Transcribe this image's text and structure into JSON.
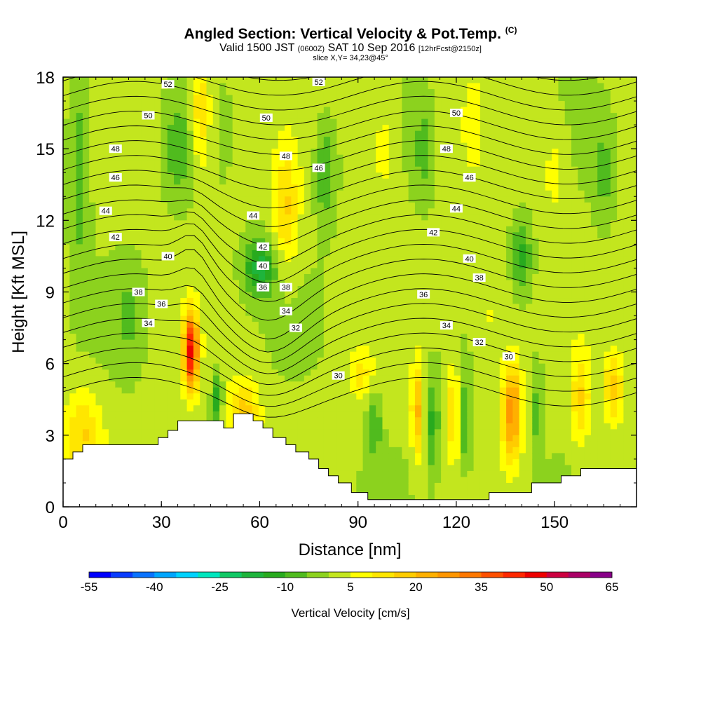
{
  "header": {
    "title": "Angled Section: Vertical Velocity & Pot.Temp.",
    "title_suffix": "(C)",
    "valid_prefix": "Valid 1500 JST",
    "valid_utc": "(0600Z)",
    "valid_date": "SAT 10 Sep 2016",
    "forecast": "[12hrFcst@2150z]",
    "slice": "slice X,Y= 34,23@45°"
  },
  "chart_data": {
    "type": "heatmap",
    "title": "Angled Section: Vertical Velocity & Pot.Temp.",
    "xlabel": "Distance [nm]",
    "ylabel": "Height [Kft MSL]",
    "xlim": [
      0,
      175
    ],
    "ylim": [
      0,
      18
    ],
    "x_ticks": [
      0,
      30,
      60,
      90,
      120,
      150
    ],
    "y_ticks": [
      0,
      3,
      6,
      9,
      12,
      15,
      18
    ],
    "colorbar": {
      "label": "Vertical Velocity [cm/s]",
      "tick_labels": [
        -55,
        -40,
        -25,
        -10,
        5,
        20,
        35,
        50,
        65
      ],
      "levels": [
        -55,
        -50,
        -45,
        -40,
        -35,
        -30,
        -25,
        -20,
        -15,
        -10,
        -5,
        0,
        5,
        10,
        15,
        20,
        25,
        30,
        35,
        40,
        45,
        50,
        55,
        60,
        65
      ],
      "colors": [
        "#0000ff",
        "#0a3cff",
        "#0a73ff",
        "#00a5ff",
        "#00d2ff",
        "#00e6be",
        "#10c864",
        "#1eb43c",
        "#28aa1e",
        "#50bb1e",
        "#8cd21e",
        "#c3e61e",
        "#ffff00",
        "#ffe600",
        "#ffcc00",
        "#ffb000",
        "#ff9600",
        "#ff7800",
        "#ff5000",
        "#ff2800",
        "#ee0000",
        "#cc0040",
        "#aa0066",
        "#880088"
      ]
    },
    "theta_contour_labels": [
      {
        "value": "52",
        "x": 32,
        "y": 17.7
      },
      {
        "value": "52",
        "x": 78,
        "y": 17.8
      },
      {
        "value": "50",
        "x": 26,
        "y": 16.4
      },
      {
        "value": "50",
        "x": 62,
        "y": 16.3
      },
      {
        "value": "50",
        "x": 120,
        "y": 16.5
      },
      {
        "value": "48",
        "x": 16,
        "y": 15.0
      },
      {
        "value": "48",
        "x": 68,
        "y": 14.7
      },
      {
        "value": "48",
        "x": 117,
        "y": 15.0
      },
      {
        "value": "46",
        "x": 16,
        "y": 13.8
      },
      {
        "value": "46",
        "x": 78,
        "y": 14.2
      },
      {
        "value": "46",
        "x": 124,
        "y": 13.8
      },
      {
        "value": "44",
        "x": 13,
        "y": 12.4
      },
      {
        "value": "44",
        "x": 58,
        "y": 12.2
      },
      {
        "value": "44",
        "x": 120,
        "y": 12.5
      },
      {
        "value": "42",
        "x": 16,
        "y": 11.3
      },
      {
        "value": "42",
        "x": 61,
        "y": 10.9
      },
      {
        "value": "42",
        "x": 113,
        "y": 11.5
      },
      {
        "value": "40",
        "x": 32,
        "y": 10.5
      },
      {
        "value": "40",
        "x": 61,
        "y": 10.1
      },
      {
        "value": "40",
        "x": 124,
        "y": 10.4
      },
      {
        "value": "38",
        "x": 23,
        "y": 9.0
      },
      {
        "value": "38",
        "x": 68,
        "y": 9.2
      },
      {
        "value": "38",
        "x": 127,
        "y": 9.6
      },
      {
        "value": "36",
        "x": 30,
        "y": 8.5
      },
      {
        "value": "36",
        "x": 61,
        "y": 9.2
      },
      {
        "value": "36",
        "x": 110,
        "y": 8.9
      },
      {
        "value": "34",
        "x": 26,
        "y": 7.7
      },
      {
        "value": "34",
        "x": 68,
        "y": 8.2
      },
      {
        "value": "34",
        "x": 117,
        "y": 7.6
      },
      {
        "value": "32",
        "x": 71,
        "y": 7.5
      },
      {
        "value": "32",
        "x": 127,
        "y": 6.9
      },
      {
        "value": "30",
        "x": 84,
        "y": 5.5
      },
      {
        "value": "30",
        "x": 136,
        "y": 6.3
      }
    ]
  }
}
